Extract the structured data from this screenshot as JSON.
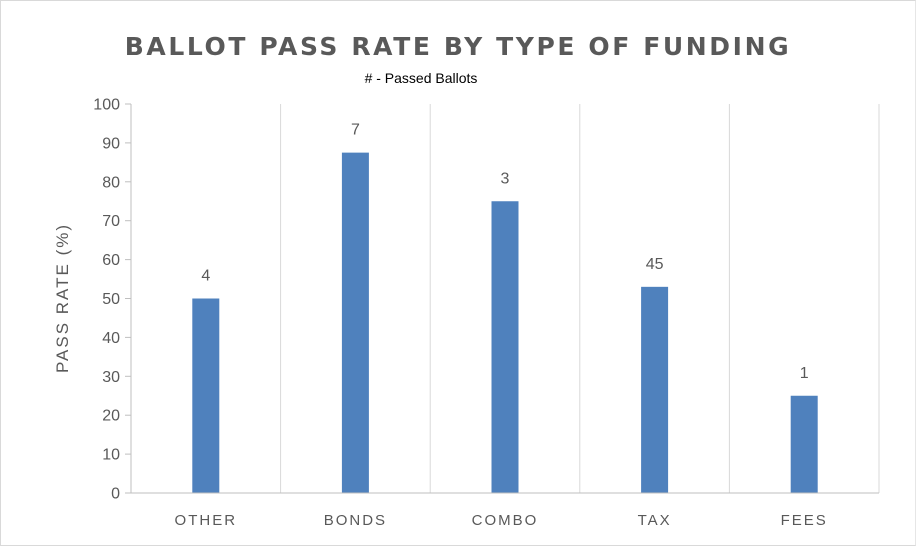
{
  "chart_data": {
    "type": "bar",
    "title": "BALLOT PASS RATE BY TYPE OF FUNDING",
    "subtitle": "# - Passed Ballots",
    "ylabel": "PASS RATE (%)",
    "xlabel": "",
    "categories": [
      "OTHER",
      "BONDS",
      "COMBO",
      "TAX",
      "FEES"
    ],
    "values": [
      50,
      87.5,
      75,
      53,
      25
    ],
    "data_labels": [
      "4",
      "7",
      "3",
      "45",
      "1"
    ],
    "ylim": [
      0,
      100
    ],
    "yticks": [
      0,
      10,
      20,
      30,
      40,
      50,
      60,
      70,
      80,
      90,
      100
    ],
    "grid": "vertical category separators",
    "bar_color": "#4f81bd",
    "text_color": "#595959",
    "grid_color": "#d9d9d9"
  }
}
